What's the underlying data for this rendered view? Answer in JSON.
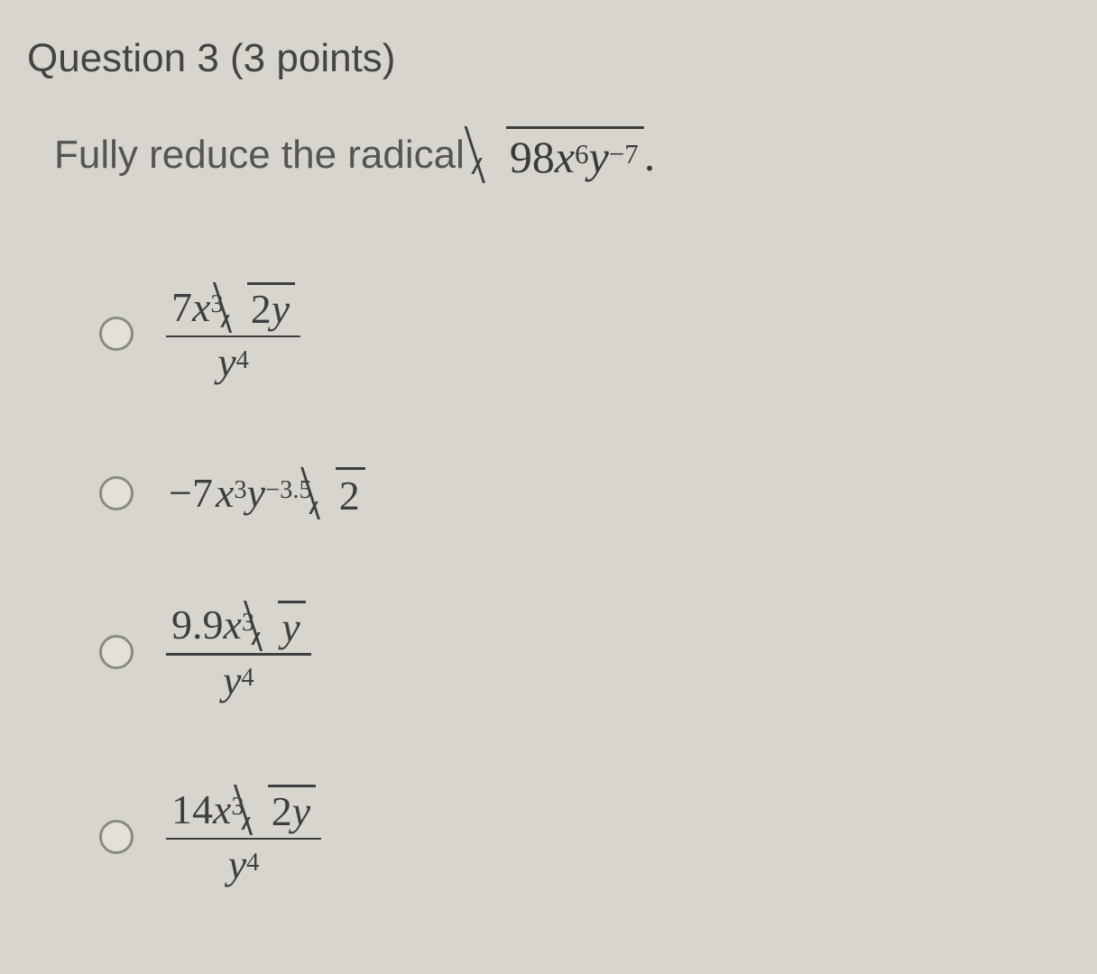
{
  "question": {
    "heading": "Question 3 (3 points)",
    "prompt_text": "Fully reduce the radical",
    "radicand": {
      "coef": "98",
      "x_exp": "6",
      "y_exp": "−7"
    },
    "period": "."
  },
  "options": {
    "a": {
      "num_coef": "7",
      "num_x_exp": "3",
      "num_rad_inner": "2",
      "num_rad_var": "y",
      "den_var": "y",
      "den_exp": "4"
    },
    "b": {
      "coef": "−7",
      "x_exp": "3",
      "y_exp": "−3.5",
      "rad_inner": "2"
    },
    "c": {
      "num_coef": "9.9",
      "num_x_exp": "3",
      "num_rad_var": "y",
      "den_var": "y",
      "den_exp": "4"
    },
    "d": {
      "num_coef": "14",
      "num_x_exp": "3",
      "num_rad_inner": "2",
      "num_rad_var": "y",
      "den_var": "y",
      "den_exp": "4"
    }
  },
  "style": {
    "bg": "#d8d5ce",
    "text": "#3d3f40",
    "heading_fontsize": 44,
    "math_fontsize": 50,
    "option_fontsize": 46
  }
}
